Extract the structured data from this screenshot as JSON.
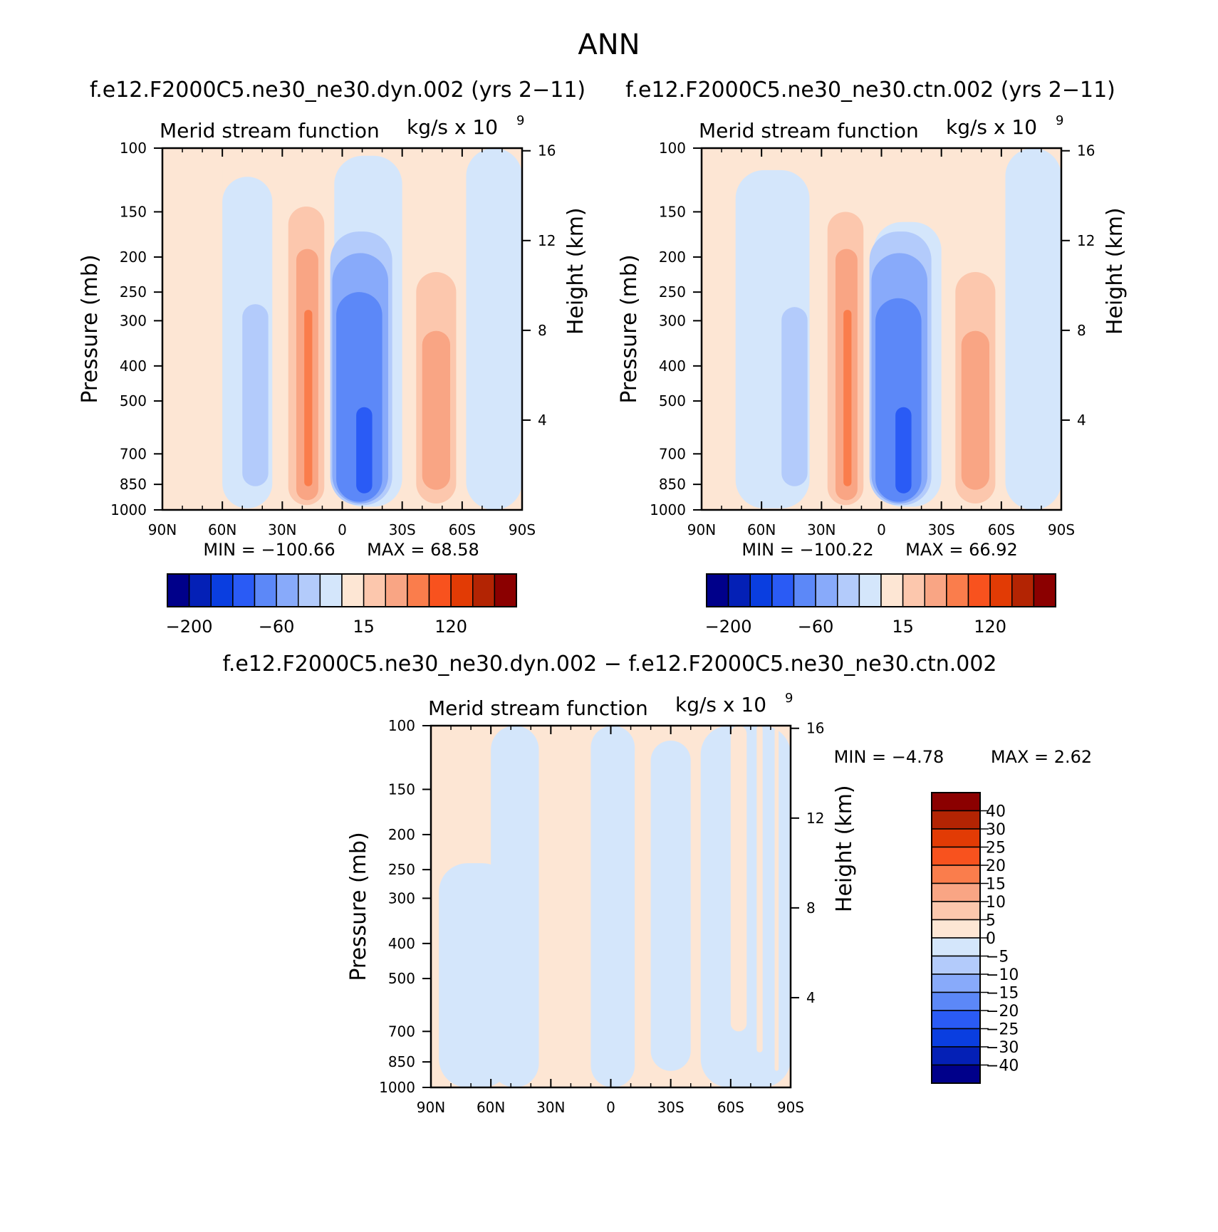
{
  "figure": {
    "main_title": "ANN",
    "title_left": "f.e12.F2000C5.ne30_ne30.dyn.002 (yrs 2−11)",
    "title_right": "f.e12.F2000C5.ne30_ne30.ctn.002 (yrs 2−11)",
    "title_diff": "f.e12.F2000C5.ne30_ne30.dyn.002 − f.e12.F2000C5.ne30_ne30.ctn.002"
  },
  "chart_data": [
    {
      "type": "heatmap",
      "panel": "dyn",
      "title": "Merid stream function",
      "units": "kg/s x 10",
      "units_exp": "9",
      "xlabel": "",
      "ylabel": "Pressure (mb)",
      "y2label": "Height (km)",
      "x_ticks": [
        "90N",
        "60N",
        "30N",
        "0",
        "30S",
        "60S",
        "90S"
      ],
      "y_ticks": [
        100,
        150,
        200,
        250,
        300,
        400,
        500,
        700,
        850,
        1000
      ],
      "y2_ticks": [
        16,
        12,
        8,
        4
      ],
      "y_scale": "log",
      "min_label": "MIN = −100.66",
      "max_label": "MAX = 68.58",
      "colorbar": {
        "orientation": "horizontal",
        "labels": [
          "−200",
          "−60",
          "15",
          "120"
        ]
      },
      "cells": [
        {
          "lat": [
            82,
            60
          ],
          "p": [
            100,
            1000
          ],
          "level": "pos1"
        },
        {
          "lat": [
            60,
            35
          ],
          "p": [
            120,
            990
          ],
          "level": "neg1"
        },
        {
          "lat": [
            50,
            37
          ],
          "p": [
            270,
            860
          ],
          "level": "neg2"
        },
        {
          "lat": [
            27,
            9
          ],
          "p": [
            145,
            970
          ],
          "level": "pos2"
        },
        {
          "lat": [
            23,
            12
          ],
          "p": [
            190,
            940
          ],
          "level": "pos3"
        },
        {
          "lat": [
            19,
            15
          ],
          "p": [
            280,
            860
          ],
          "level": "pos4"
        },
        {
          "lat": [
            4,
            -30
          ],
          "p": [
            105,
            980
          ],
          "level": "neg1"
        },
        {
          "lat": [
            6,
            -25
          ],
          "p": [
            170,
            970
          ],
          "level": "neg2"
        },
        {
          "lat": [
            5,
            -23
          ],
          "p": [
            195,
            960
          ],
          "level": "neg3"
        },
        {
          "lat": [
            3,
            -20
          ],
          "p": [
            250,
            950
          ],
          "level": "neg4"
        },
        {
          "lat": [
            -7,
            -15
          ],
          "p": [
            520,
            900
          ],
          "level": "neg5"
        },
        {
          "lat": [
            -32,
            -62
          ],
          "p": [
            105,
            990
          ],
          "level": "pos1"
        },
        {
          "lat": [
            -37,
            -57
          ],
          "p": [
            220,
            960
          ],
          "level": "pos2"
        },
        {
          "lat": [
            -40,
            -54
          ],
          "p": [
            320,
            880
          ],
          "level": "pos3"
        },
        {
          "lat": [
            -62,
            -90
          ],
          "p": [
            100,
            1000
          ],
          "level": "neg1"
        }
      ]
    },
    {
      "type": "heatmap",
      "panel": "ctn",
      "title": "Merid stream function",
      "units": "kg/s x 10",
      "units_exp": "9",
      "xlabel": "",
      "ylabel": "Pressure (mb)",
      "y2label": "Height (km)",
      "x_ticks": [
        "90N",
        "60N",
        "30N",
        "0",
        "30S",
        "60S",
        "90S"
      ],
      "y_ticks": [
        100,
        150,
        200,
        250,
        300,
        400,
        500,
        700,
        850,
        1000
      ],
      "y2_ticks": [
        16,
        12,
        8,
        4
      ],
      "y_scale": "log",
      "min_label": "MIN = −100.22",
      "max_label": "MAX = 66.92",
      "colorbar": {
        "orientation": "horizontal",
        "labels": [
          "−200",
          "−60",
          "15",
          "120"
        ]
      },
      "cells": [
        {
          "lat": [
            72,
            52
          ],
          "p": [
            100,
            1000
          ],
          "level": "pos1"
        },
        {
          "lat": [
            73,
            36
          ],
          "p": [
            115,
            990
          ],
          "level": "neg1"
        },
        {
          "lat": [
            50,
            37
          ],
          "p": [
            275,
            860
          ],
          "level": "neg2"
        },
        {
          "lat": [
            27,
            9
          ],
          "p": [
            150,
            970
          ],
          "level": "pos2"
        },
        {
          "lat": [
            23,
            12
          ],
          "p": [
            190,
            940
          ],
          "level": "pos3"
        },
        {
          "lat": [
            19,
            15
          ],
          "p": [
            280,
            860
          ],
          "level": "pos4"
        },
        {
          "lat": [
            4,
            -30
          ],
          "p": [
            160,
            980
          ],
          "level": "neg1"
        },
        {
          "lat": [
            6,
            -25
          ],
          "p": [
            170,
            970
          ],
          "level": "neg2"
        },
        {
          "lat": [
            5,
            -23
          ],
          "p": [
            195,
            960
          ],
          "level": "neg3"
        },
        {
          "lat": [
            3,
            -20
          ],
          "p": [
            260,
            950
          ],
          "level": "neg4"
        },
        {
          "lat": [
            -7,
            -15
          ],
          "p": [
            520,
            900
          ],
          "level": "neg5"
        },
        {
          "lat": [
            -32,
            -62
          ],
          "p": [
            100,
            990
          ],
          "level": "pos1"
        },
        {
          "lat": [
            -37,
            -57
          ],
          "p": [
            220,
            960
          ],
          "level": "pos2"
        },
        {
          "lat": [
            -40,
            -54
          ],
          "p": [
            320,
            880
          ],
          "level": "pos3"
        },
        {
          "lat": [
            -62,
            -90
          ],
          "p": [
            100,
            1000
          ],
          "level": "neg1"
        }
      ]
    },
    {
      "type": "heatmap",
      "panel": "difference",
      "title": "Merid stream function",
      "units": "kg/s x 10",
      "units_exp": "9",
      "xlabel": "",
      "ylabel": "Pressure (mb)",
      "y2label": "Height (km)",
      "x_ticks": [
        "90N",
        "60N",
        "30N",
        "0",
        "30S",
        "60S",
        "90S"
      ],
      "y_ticks": [
        100,
        150,
        200,
        250,
        300,
        400,
        500,
        700,
        850,
        1000
      ],
      "y2_ticks": [
        16,
        12,
        8,
        4
      ],
      "y_scale": "log",
      "min_label": "MIN = −4.78",
      "max_label": "MAX = 2.62",
      "colorbar": {
        "orientation": "vertical",
        "labels": [
          "40",
          "30",
          "25",
          "20",
          "15",
          "10",
          "5",
          "0",
          "−5",
          "−10",
          "−15",
          "−20",
          "−25",
          "−30",
          "−40"
        ]
      },
      "cells": [
        {
          "lat": [
            90,
            60
          ],
          "p": [
            100,
            1000
          ],
          "level": "pos1"
        },
        {
          "lat": [
            86,
            50
          ],
          "p": [
            240,
            1000
          ],
          "level": "neg1"
        },
        {
          "lat": [
            60,
            36
          ],
          "p": [
            100,
            1000
          ],
          "level": "neg1"
        },
        {
          "lat": [
            36,
            13
          ],
          "p": [
            100,
            170
          ],
          "level": "pos1"
        },
        {
          "lat": [
            34,
            28
          ],
          "p": [
            170,
            320
          ],
          "level": "pos1"
        },
        {
          "lat": [
            10,
            -12
          ],
          "p": [
            100,
            1000
          ],
          "level": "neg1"
        },
        {
          "lat": [
            -12,
            -45
          ],
          "p": [
            100,
            1000
          ],
          "level": "pos1"
        },
        {
          "lat": [
            -20,
            -40
          ],
          "p": [
            110,
            900
          ],
          "level": "neg1"
        },
        {
          "lat": [
            -45,
            -90
          ],
          "p": [
            100,
            1000
          ],
          "level": "neg1"
        },
        {
          "lat": [
            -60,
            -68
          ],
          "p": [
            100,
            700
          ],
          "level": "pos1"
        },
        {
          "lat": [
            -73,
            -76
          ],
          "p": [
            100,
            800
          ],
          "level": "pos1"
        },
        {
          "lat": [
            -82,
            -84
          ],
          "p": [
            100,
            900
          ],
          "level": "pos1"
        }
      ]
    }
  ],
  "palette": {
    "neg": [
      "#d4e6fb",
      "#b3cbfb",
      "#88aafa",
      "#5c88f8",
      "#2a5bf5",
      "#0a3ee0",
      "#0420b6",
      "#00008a"
    ],
    "pos": [
      "#fde6d4",
      "#fcc7ad",
      "#f9a584",
      "#fa7d4c",
      "#f8521e",
      "#e23b05",
      "#b32403",
      "#8b0000"
    ]
  }
}
